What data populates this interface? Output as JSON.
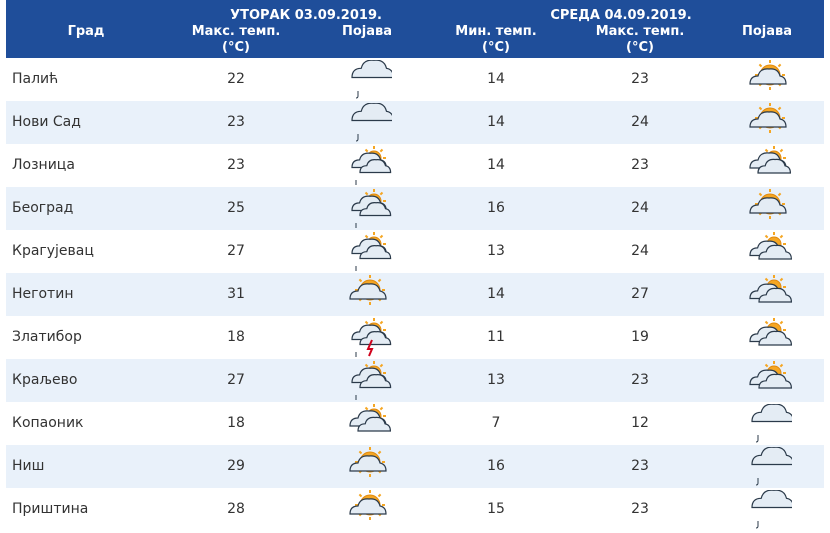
{
  "header": {
    "city_col": "Град",
    "tue_day": "УТОРАК  03.09.2019.",
    "wed_day": "СРЕДА  04.09.2019.",
    "max_temp": "Макс. темп.",
    "min_temp": "Мин. темп.",
    "unit": "(°C)",
    "phenomenon": "Појава"
  },
  "rows": [
    {
      "city": "Палић",
      "tue_max": "22",
      "tue_icon": "cloud-drizzle-icon",
      "wed_min": "14",
      "wed_max": "23",
      "wed_icon": "sun-behind-cloud-icon"
    },
    {
      "city": "Нови Сад",
      "tue_max": "23",
      "tue_icon": "cloud-drizzle-icon",
      "wed_min": "14",
      "wed_max": "24",
      "wed_icon": "sun-behind-cloud-icon"
    },
    {
      "city": "Лозница",
      "tue_max": "23",
      "tue_icon": "partly-cloudy-drizzle-icon",
      "wed_min": "14",
      "wed_max": "23",
      "wed_icon": "cloud-with-sun-icon"
    },
    {
      "city": "Београд",
      "tue_max": "25",
      "tue_icon": "partly-cloudy-drizzle-icon",
      "wed_min": "16",
      "wed_max": "24",
      "wed_icon": "sun-behind-cloud-icon"
    },
    {
      "city": "Крагујевац",
      "tue_max": "27",
      "tue_icon": "partly-cloudy-drizzle-icon",
      "wed_min": "13",
      "wed_max": "24",
      "wed_icon": "partly-cloudy-icon"
    },
    {
      "city": "Неготин",
      "tue_max": "31",
      "tue_icon": "sun-behind-cloud-icon",
      "wed_min": "14",
      "wed_max": "27",
      "wed_icon": "partly-cloudy-icon"
    },
    {
      "city": "Златибор",
      "tue_max": "18",
      "tue_icon": "thunderstorm-icon",
      "wed_min": "11",
      "wed_max": "19",
      "wed_icon": "partly-cloudy-icon"
    },
    {
      "city": "Краљево",
      "tue_max": "27",
      "tue_icon": "partly-cloudy-drizzle-icon",
      "wed_min": "13",
      "wed_max": "23",
      "wed_icon": "partly-cloudy-icon"
    },
    {
      "city": "Копаоник",
      "tue_max": "18",
      "tue_icon": "cloud-with-sun-icon",
      "wed_min": "7",
      "wed_max": "12",
      "wed_icon": "cloud-drizzle-icon"
    },
    {
      "city": "Ниш",
      "tue_max": "29",
      "tue_icon": "sun-behind-cloud-icon",
      "wed_min": "16",
      "wed_max": "23",
      "wed_icon": "cloud-drizzle-icon"
    },
    {
      "city": "Приштина",
      "tue_max": "28",
      "tue_icon": "sun-behind-cloud-icon",
      "wed_min": "15",
      "wed_max": "23",
      "wed_icon": "cloud-drizzle-icon"
    }
  ],
  "colors": {
    "header_bg": "#1f4e9a",
    "alt_row": "#e9f1fa",
    "sun": "#f5a623",
    "cloud": "#dfe8f0",
    "cloud_stroke": "#2b3a4a"
  }
}
